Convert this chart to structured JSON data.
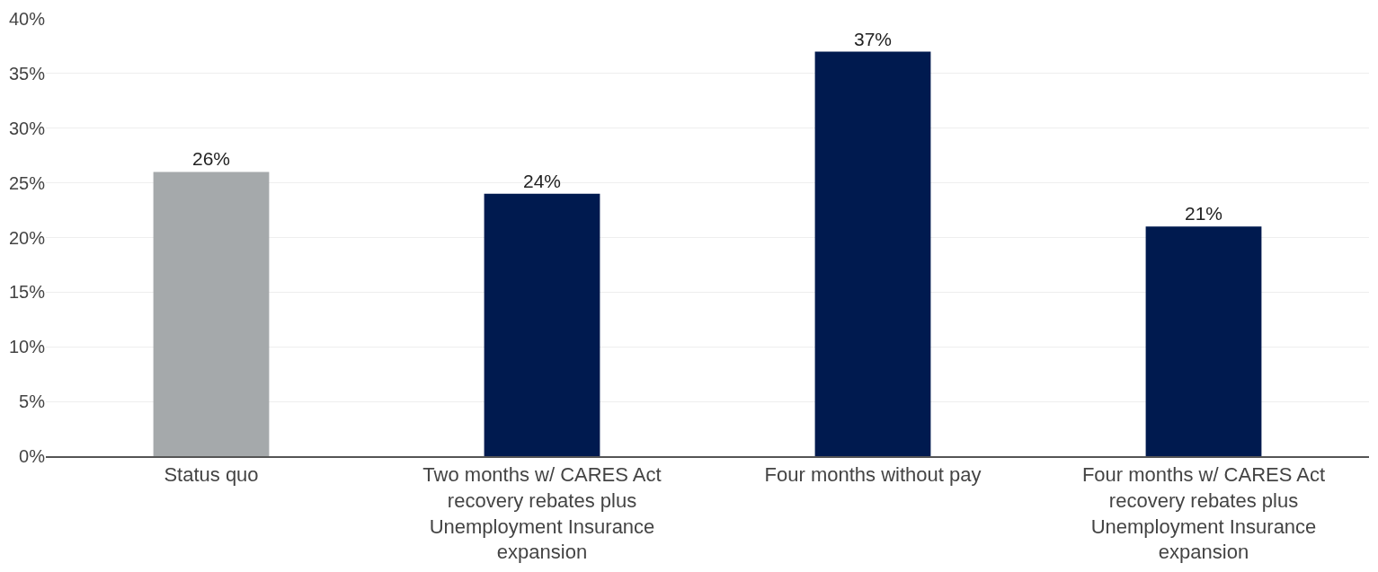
{
  "chart_data": {
    "type": "bar",
    "categories": [
      "Status quo",
      "Two months w/ CARES Act recovery rebates plus Unemployment Insurance expansion",
      "Four months without pay",
      "Four months w/ CARES Act recovery rebates plus Unemployment Insurance expansion"
    ],
    "values": [
      26,
      24,
      37,
      21
    ],
    "value_labels": [
      "26%",
      "24%",
      "37%",
      "21%"
    ],
    "colors": [
      "#a5a9ab",
      "#001a4f",
      "#001a4f",
      "#001a4f"
    ],
    "ylim": [
      0,
      40
    ],
    "yticks": [
      {
        "value": 0,
        "label": "0%"
      },
      {
        "value": 5,
        "label": "5%"
      },
      {
        "value": 10,
        "label": "10%"
      },
      {
        "value": 15,
        "label": "15%"
      },
      {
        "value": 20,
        "label": "20%"
      },
      {
        "value": 25,
        "label": "25%"
      },
      {
        "value": 30,
        "label": "30%"
      },
      {
        "value": 35,
        "label": "35%"
      },
      {
        "value": 40,
        "label": "40%"
      }
    ],
    "grid": "y"
  }
}
